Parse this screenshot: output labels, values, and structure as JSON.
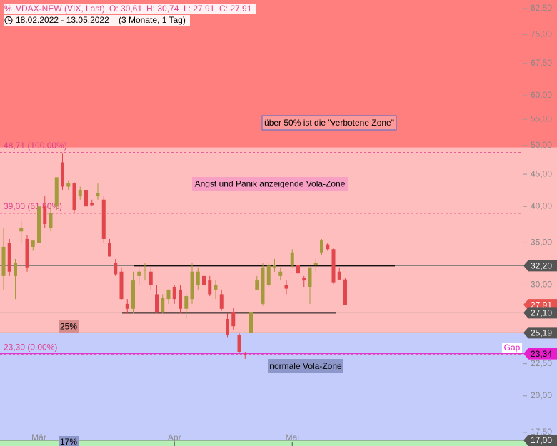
{
  "header": {
    "symbol": "VDAX-NEW (VIX, Last)",
    "ohlc": [
      "O: 30,61",
      "H: 30,74",
      "L: 27,91",
      "C: 27,91"
    ],
    "range": "18.02.2022 - 13.05.2022",
    "period": "(3 Monate, 1 Tag)"
  },
  "chart_data": {
    "type": "candlestick",
    "log_scale": true,
    "categories": [
      null,
      null,
      null,
      null,
      null,
      null,
      "Mär",
      null,
      null,
      null,
      null,
      null,
      null,
      null,
      null,
      null,
      null,
      null,
      null,
      null,
      null,
      null,
      null,
      null,
      null,
      null,
      null,
      null,
      null,
      "Apr",
      null,
      null,
      null,
      null,
      null,
      null,
      null,
      null,
      null,
      null,
      null,
      null,
      null,
      null,
      null,
      null,
      null,
      null,
      null,
      "Mai",
      null,
      null,
      null,
      null,
      null,
      null,
      null,
      null,
      null
    ],
    "open": [
      31,
      35,
      31,
      36.5,
      35.5,
      34.5,
      35,
      40,
      37,
      40,
      47,
      43,
      43.5,
      41.5,
      42.5,
      40.5,
      41.5,
      41,
      35,
      32.5,
      31.5,
      28,
      27.5,
      31,
      31.7,
      31.5,
      29,
      27.2,
      28.5,
      29.8,
      29.5,
      27.5,
      28.5,
      30,
      31,
      30.5,
      29.5,
      29,
      26.5,
      27.2,
      25,
      23.3,
      25.2,
      29.5,
      28,
      30,
      32,
      31,
      30,
      32.2,
      32.3,
      30.8,
      29.8,
      32.3,
      33.8,
      34.8,
      34.2,
      31.5,
      30.61
    ],
    "high": [
      37,
      35.5,
      33,
      38,
      36,
      35,
      40,
      41.5,
      40,
      44.5,
      48.5,
      44,
      43.7,
      43,
      43,
      41,
      43.5,
      41.5,
      35.5,
      33,
      32,
      28.5,
      31.5,
      32,
      32.5,
      32,
      30,
      29,
      29.5,
      30,
      30,
      29,
      32.5,
      32,
      31.5,
      31,
      30.5,
      29.5,
      27,
      27.6,
      25.2,
      23.5,
      27.3,
      31,
      32.5,
      32.5,
      33,
      32,
      30.5,
      34.2,
      32.5,
      31,
      32,
      33,
      35.5,
      35,
      34.3,
      32,
      30.74
    ],
    "low": [
      29.5,
      31,
      28.5,
      35,
      31.5,
      34,
      34.5,
      37,
      36.5,
      39.5,
      42.5,
      42.5,
      39,
      41,
      39.5,
      40,
      41,
      35,
      33.3,
      31,
      28.4,
      27,
      27,
      30,
      30.5,
      29.5,
      27,
      27,
      28,
      28,
      27,
      26.5,
      28,
      29.5,
      29.5,
      28.8,
      28.5,
      27.3,
      24.8,
      25.5,
      23.3,
      22.9,
      25,
      29.5,
      27.8,
      29.8,
      31.5,
      30.5,
      29,
      32,
      31,
      29.8,
      28,
      31.5,
      33.5,
      34,
      30.1,
      30.5,
      27.91
    ],
    "close": [
      34.5,
      31.5,
      32.5,
      37,
      32,
      35.3,
      40,
      37.5,
      39,
      44.5,
      43,
      43.5,
      39.5,
      42.5,
      40,
      40.2,
      42,
      35.5,
      33.3,
      31.2,
      28.5,
      27.5,
      30.5,
      31.5,
      31.7,
      30,
      27.2,
      28.6,
      29.5,
      28.5,
      27.5,
      28.8,
      31.5,
      31.5,
      30,
      29,
      30,
      27.5,
      25,
      25.8,
      23.5,
      23.2,
      27.2,
      30.5,
      32,
      32.2,
      32.3,
      31.5,
      29.6,
      33.8,
      31.3,
      30.5,
      32,
      32.5,
      35.3,
      34.2,
      30.3,
      30.6,
      27.91
    ],
    "up_color": "#a39a3c",
    "down_color": "#e0464b",
    "ylim": [
      16.65,
      85.1
    ],
    "yticks": [
      {
        "value": 82.5,
        "label": "82,50"
      },
      {
        "value": 75,
        "label": "75,00"
      },
      {
        "value": 67.5,
        "label": "67,50"
      },
      {
        "value": 60,
        "label": "60,00"
      },
      {
        "value": 55,
        "label": "55,00"
      },
      {
        "value": 50,
        "label": "50,00"
      },
      {
        "value": 45,
        "label": "45,00"
      },
      {
        "value": 40,
        "label": "40,00"
      },
      {
        "value": 35,
        "label": "35,00"
      },
      {
        "value": 30,
        "label": "30,00"
      },
      {
        "value": 22.5,
        "label": "22,50"
      },
      {
        "value": 20,
        "label": "20,00"
      },
      {
        "value": 17.5,
        "label": "17,50"
      }
    ],
    "zones": [
      {
        "range": [
          49.6,
          85.1
        ],
        "color": "#ff7f7f"
      },
      {
        "range": [
          25.19,
          49.6
        ],
        "color": "#ffbebe"
      },
      {
        "range": [
          17,
          25.19
        ],
        "color": "#c4ccfc"
      },
      {
        "range": [
          16.65,
          17
        ],
        "color": "#b6efb6"
      }
    ],
    "fib_levels": [
      {
        "value": 48.71,
        "label": "48,71 (100,00%)"
      },
      {
        "value": 39,
        "label": "39,00 (61,80%)"
      },
      {
        "value": 23.3,
        "label": "23,30 (0,00%)"
      }
    ],
    "fib_color": "#e0408c",
    "price_levels": [
      {
        "value": 27.91,
        "label": "27,91",
        "color": "#e8524f"
      },
      {
        "value": 32.2,
        "label": "32,20",
        "color": "#555555"
      },
      {
        "value": 27.1,
        "label": "27,10",
        "color": "#555555"
      },
      {
        "value": 25.19,
        "label": "25,19",
        "color": "#555555"
      },
      {
        "value": 23.34,
        "label": "23,34",
        "color": "#e61ecb"
      },
      {
        "value": 17,
        "label": "17,00",
        "color": "#555555"
      }
    ],
    "annotations": [
      "über 50% ist die \"verbotene Zone\"",
      "Angst und Panik anzeigende Vola-Zone",
      "normale Vola-Zone",
      "25%",
      "17%",
      "Gap"
    ]
  }
}
